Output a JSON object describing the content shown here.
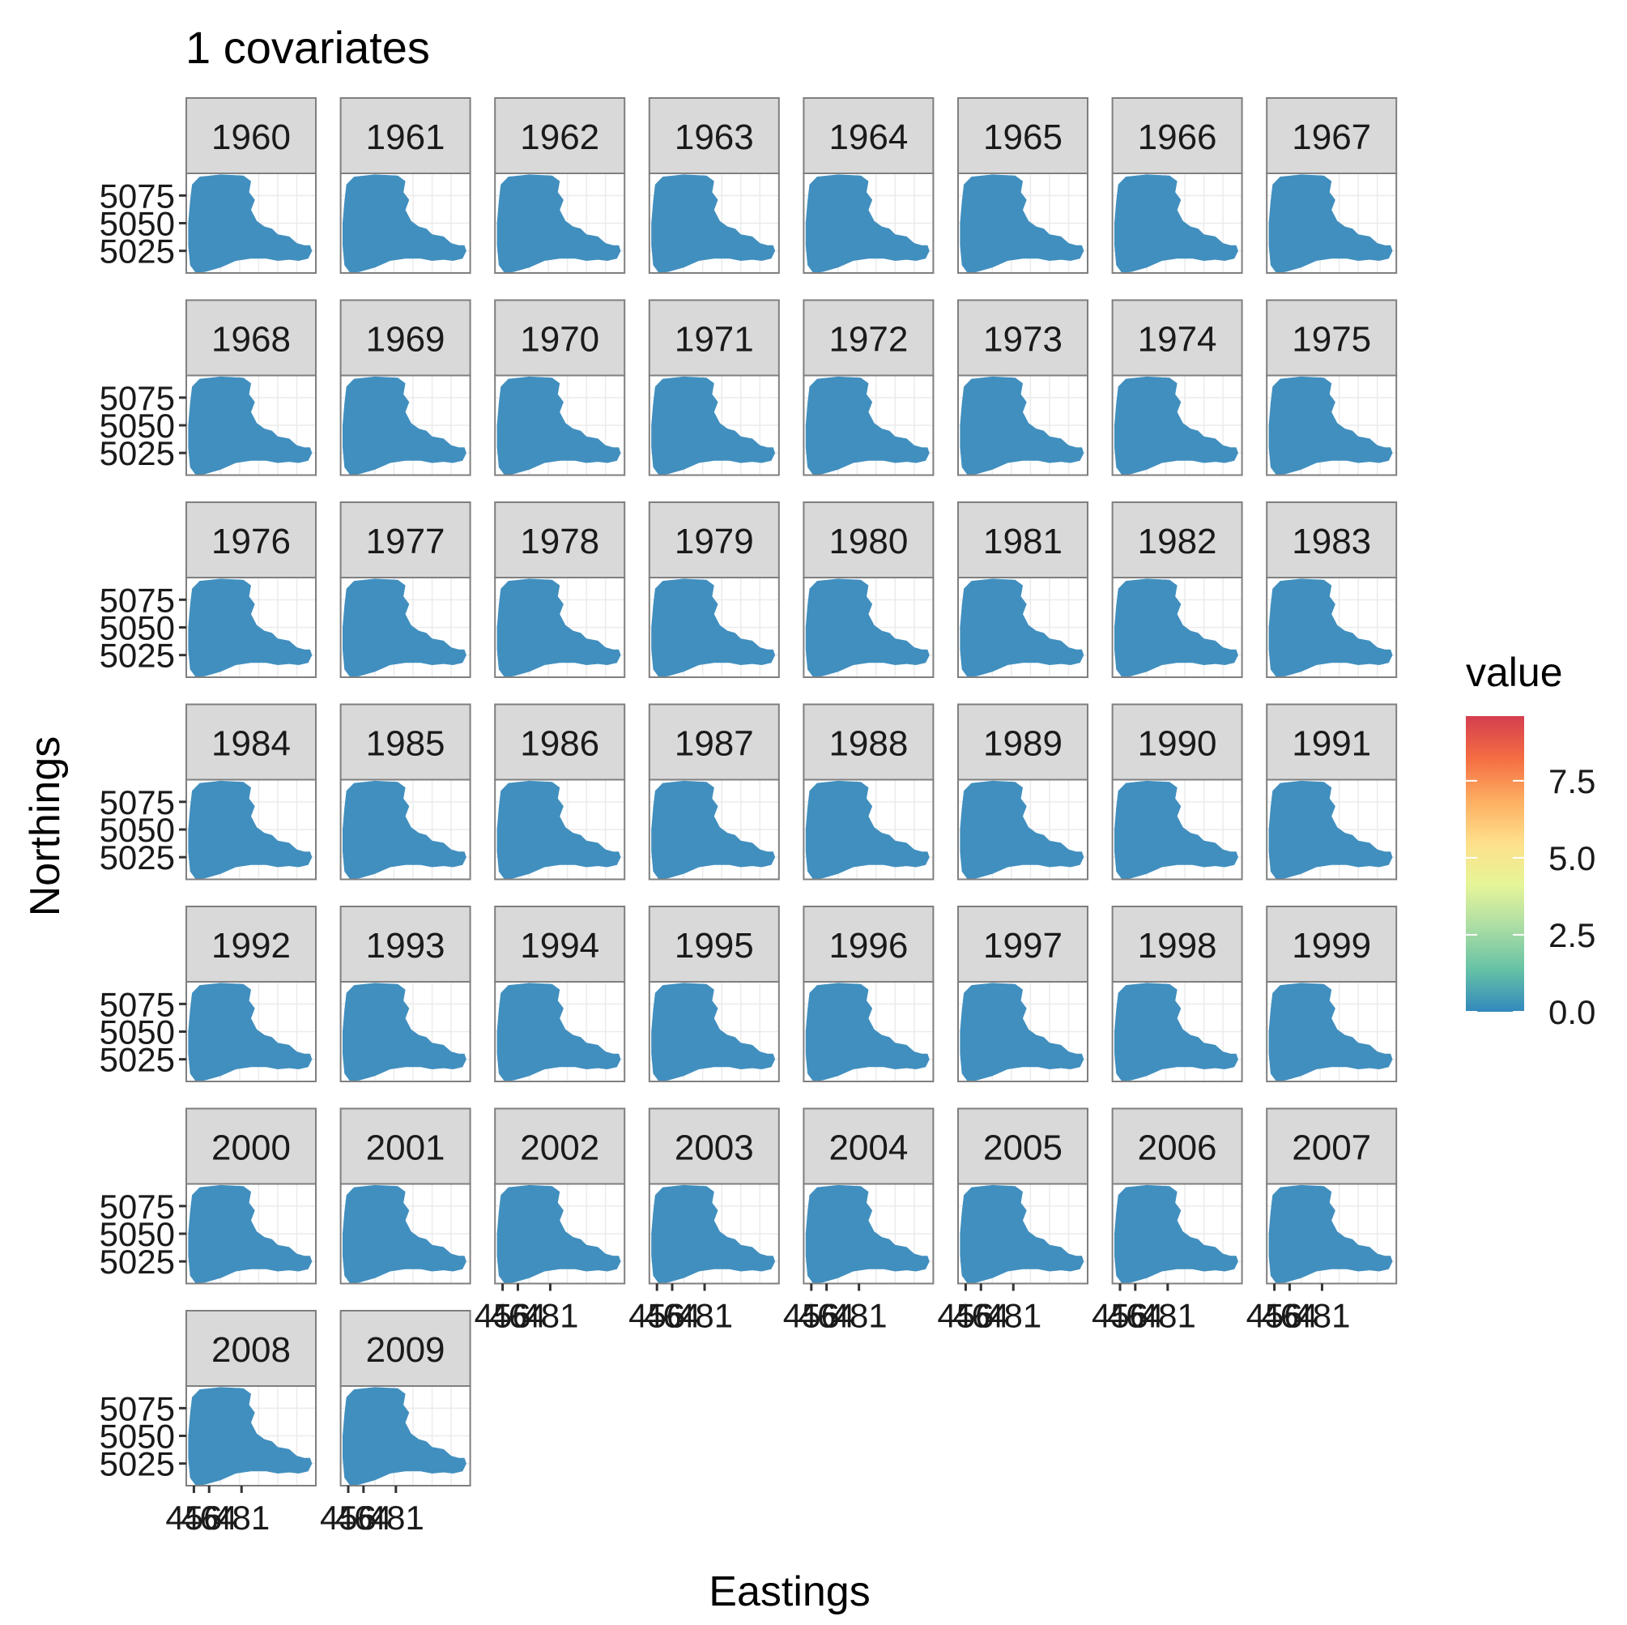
{
  "chart_data": {
    "type": "heatmap",
    "title": "1 covariates",
    "xlabel": "Eastings",
    "ylabel": "Northings",
    "facets": [
      "1960",
      "1961",
      "1962",
      "1963",
      "1964",
      "1965",
      "1966",
      "1967",
      "1968",
      "1969",
      "1970",
      "1971",
      "1972",
      "1973",
      "1974",
      "1975",
      "1976",
      "1977",
      "1978",
      "1979",
      "1980",
      "1981",
      "1982",
      "1983",
      "1984",
      "1985",
      "1986",
      "1987",
      "1988",
      "1989",
      "1990",
      "1991",
      "1992",
      "1993",
      "1994",
      "1995",
      "1996",
      "1997",
      "1998",
      "1999",
      "2000",
      "2001",
      "2002",
      "2003",
      "2004",
      "2005",
      "2006",
      "2007",
      "2008",
      "2009"
    ],
    "facet_columns": 8,
    "y_ticks": [
      5025,
      5050,
      5075
    ],
    "ylim": [
      5005,
      5095
    ],
    "x_tick_labels": [
      "456",
      "464",
      "481"
    ],
    "x_ticks": [
      456,
      464,
      481
    ],
    "xlim": [
      452,
      520
    ],
    "legend": {
      "title": "value",
      "position": "right",
      "ticks": [
        0.0,
        2.5,
        5.0,
        7.5
      ],
      "tick_labels": [
        "0.0",
        "2.5",
        "5.0",
        "7.5"
      ],
      "range": [
        0,
        9.6
      ],
      "colors": [
        "#3288bd",
        "#66c2a5",
        "#abdda4",
        "#e6f598",
        "#fee08b",
        "#fdae61",
        "#f46d43",
        "#d53e4f"
      ]
    },
    "panel_value": 0.2,
    "panel_fill": "#418fbf",
    "strip_color": "#d9d9d9",
    "grid": true
  }
}
